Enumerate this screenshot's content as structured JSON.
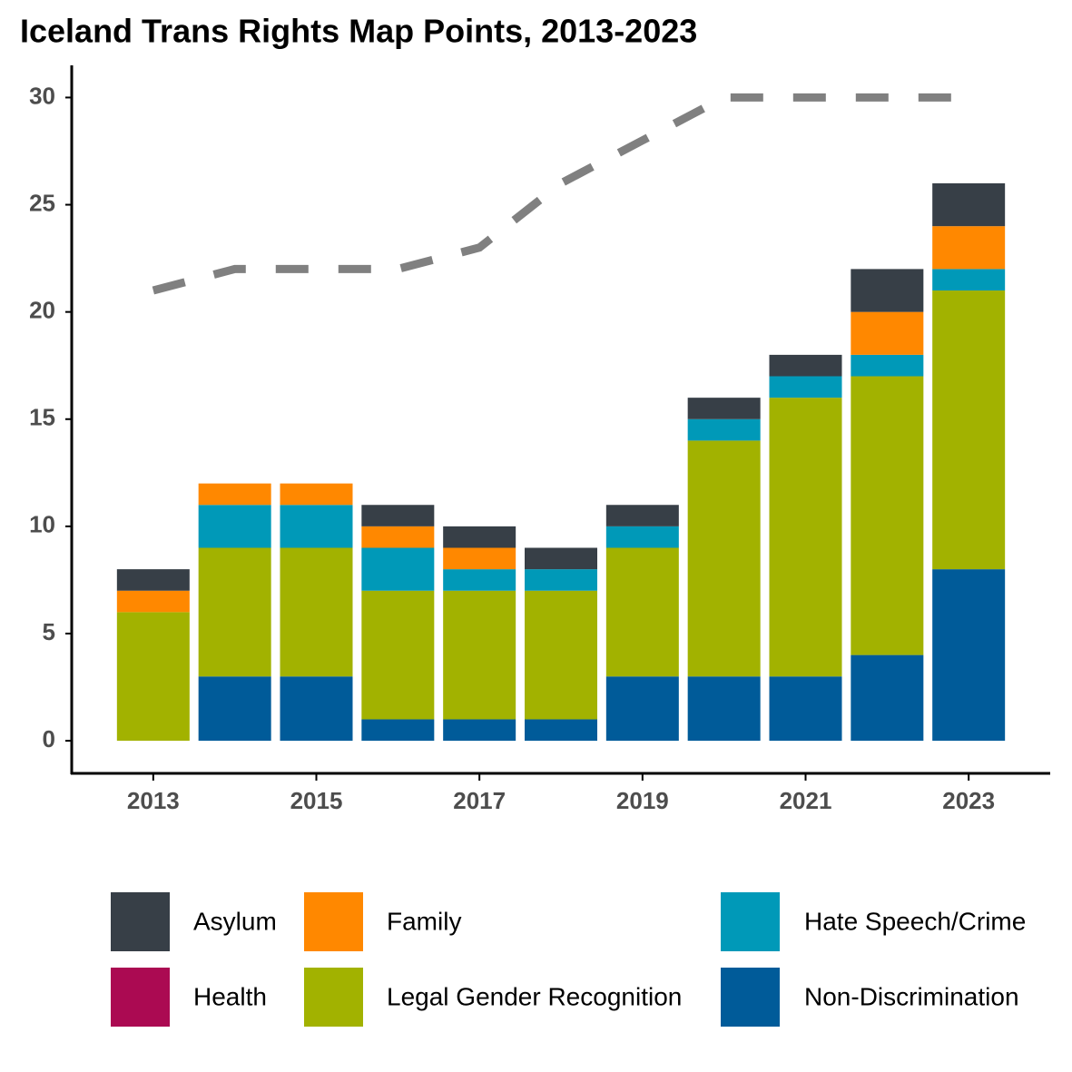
{
  "chart_data": {
    "type": "bar",
    "stacked": true,
    "title": "Iceland Trans Rights Map Points, 2013-2023",
    "x": [
      2013,
      2014,
      2015,
      2016,
      2017,
      2018,
      2019,
      2020,
      2021,
      2022,
      2023
    ],
    "series": [
      {
        "name": "Non-Discrimination",
        "color": "#005b99",
        "values": [
          0,
          3,
          3,
          1,
          1,
          1,
          3,
          3,
          3,
          4,
          8
        ]
      },
      {
        "name": "Legal Gender Recognition",
        "color": "#a2b200",
        "values": [
          6,
          6,
          6,
          6,
          6,
          6,
          6,
          11,
          13,
          13,
          13
        ]
      },
      {
        "name": "Hate Speech/Crime",
        "color": "#0099b8",
        "values": [
          0,
          2,
          2,
          2,
          1,
          1,
          1,
          1,
          1,
          1,
          1
        ]
      },
      {
        "name": "Health",
        "color": "#ab0a52",
        "values": [
          0,
          0,
          0,
          0,
          0,
          0,
          0,
          0,
          0,
          0,
          0
        ]
      },
      {
        "name": "Family",
        "color": "#ff8800",
        "values": [
          1,
          1,
          1,
          1,
          1,
          0,
          0,
          0,
          0,
          2,
          2
        ]
      },
      {
        "name": "Asylum",
        "color": "#373f47",
        "values": [
          1,
          0,
          0,
          1,
          1,
          1,
          1,
          1,
          1,
          2,
          2
        ]
      }
    ],
    "line": {
      "color": "#808080",
      "values": [
        21,
        22,
        22,
        22,
        23,
        26,
        28,
        30,
        30,
        30,
        30
      ]
    },
    "legend_order": [
      5,
      4,
      2,
      3,
      1,
      0
    ],
    "xlim": [
      2012,
      2024
    ],
    "xticks": [
      2013,
      2015,
      2017,
      2019,
      2021,
      2023
    ],
    "ylim": [
      -1.52,
      31.5
    ],
    "yticks": [
      0,
      5,
      10,
      15,
      20,
      25,
      30
    ]
  }
}
